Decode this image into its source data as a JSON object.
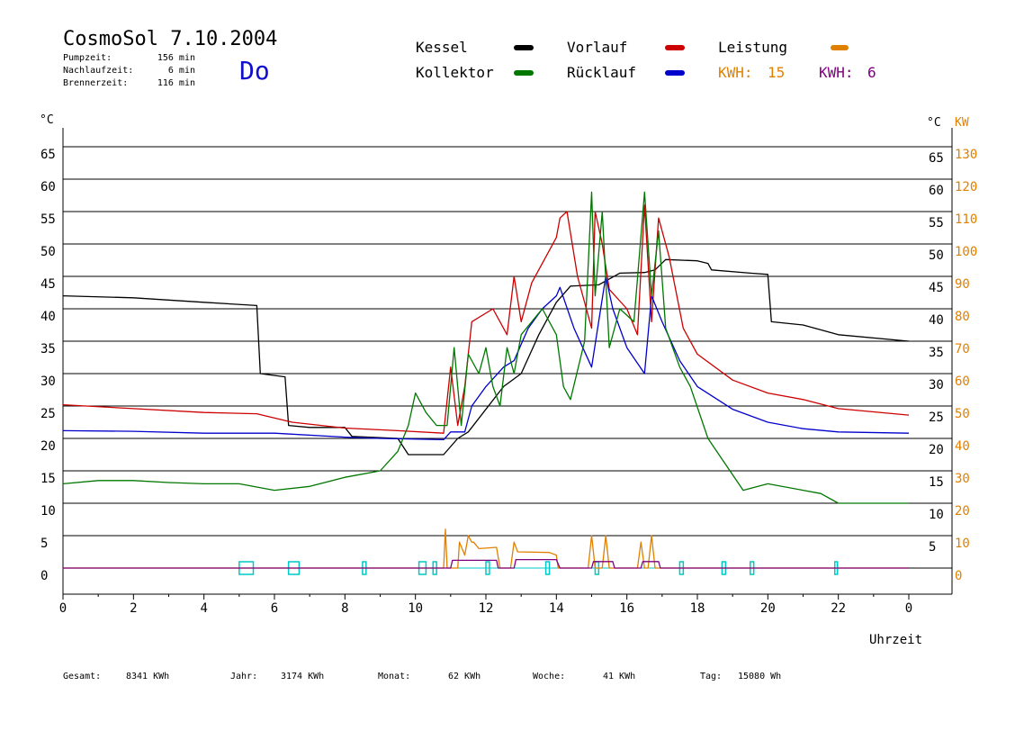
{
  "header": {
    "title": "CosmoSol 7.10.2004",
    "day": "Do",
    "stats": [
      {
        "label": "Pumpzeit:",
        "value": "156 min"
      },
      {
        "label": "Nachlaufzeit:",
        "value": "6 min"
      },
      {
        "label": "Brennerzeit:",
        "value": "116 min"
      }
    ],
    "kwh_labels": [
      {
        "label": "KWH:",
        "value": "15",
        "color": "#e08000"
      },
      {
        "label": "KWH:",
        "value": "6",
        "color": "#800080"
      }
    ]
  },
  "footer": {
    "totals": [
      {
        "label": "Gesamt:",
        "value": "8341 KWh"
      },
      {
        "label": "Jahr:",
        "value": "3174 KWh"
      },
      {
        "label": "Monat:",
        "value": "62 KWh"
      },
      {
        "label": "Woche:",
        "value": "41 KWh"
      },
      {
        "label": "Tag:",
        "value": "15080 Wh"
      }
    ]
  },
  "chart_data": {
    "type": "line",
    "xlabel": "Uhrzeit",
    "ylabel_left": "°C",
    "ylabel_right_temp": "°C",
    "ylabel_right_power": "KW",
    "x_range": [
      0,
      24
    ],
    "x_ticks": [
      "0",
      "2",
      "4",
      "6",
      "8",
      "10",
      "12",
      "14",
      "16",
      "18",
      "20",
      "22",
      "0"
    ],
    "y_left_range": [
      -4,
      66
    ],
    "y_left_ticks": [
      "0",
      "5",
      "10",
      "15",
      "20",
      "25",
      "30",
      "35",
      "40",
      "45",
      "50",
      "55",
      "60",
      "65"
    ],
    "y_right_temp_ticks": [
      "5",
      "10",
      "15",
      "20",
      "25",
      "30",
      "35",
      "40",
      "45",
      "50",
      "55",
      "60",
      "65"
    ],
    "y_right_power_ticks": [
      "0",
      "10",
      "20",
      "30",
      "40",
      "50",
      "60",
      "70",
      "80",
      "90",
      "100",
      "110",
      "120",
      "130"
    ],
    "grid": true,
    "legend": "top",
    "series": [
      {
        "name": "Kessel",
        "color": "#000000",
        "points": [
          [
            0,
            42
          ],
          [
            2,
            41.7
          ],
          [
            4,
            41
          ],
          [
            5.5,
            40.5
          ],
          [
            5.6,
            30
          ],
          [
            6.3,
            29.5
          ],
          [
            6.4,
            22
          ],
          [
            7,
            21.7
          ],
          [
            8,
            21.7
          ],
          [
            8.2,
            20.3
          ],
          [
            9.5,
            20
          ],
          [
            9.8,
            17.5
          ],
          [
            10.8,
            17.5
          ],
          [
            11.2,
            20
          ],
          [
            11.5,
            21
          ],
          [
            12.5,
            28
          ],
          [
            13,
            30
          ],
          [
            13.5,
            36
          ],
          [
            14,
            41
          ],
          [
            14.4,
            43.5
          ],
          [
            15.2,
            43.7
          ],
          [
            15.8,
            45.5
          ],
          [
            16.5,
            45.6
          ],
          [
            16.8,
            46
          ],
          [
            17.1,
            47.6
          ],
          [
            18,
            47.4
          ],
          [
            18.3,
            47
          ],
          [
            18.4,
            46
          ],
          [
            19.5,
            45.5
          ],
          [
            20,
            45.3
          ],
          [
            20.1,
            38
          ],
          [
            21,
            37.5
          ],
          [
            22,
            36
          ],
          [
            24,
            35
          ]
        ]
      },
      {
        "name": "Vorlauf",
        "color": "#cc0000",
        "points": [
          [
            0,
            25.2
          ],
          [
            2,
            24.6
          ],
          [
            4,
            24
          ],
          [
            5.5,
            23.8
          ],
          [
            6.5,
            22.5
          ],
          [
            8,
            21.6
          ],
          [
            9.5,
            21.2
          ],
          [
            10.8,
            20.8
          ],
          [
            11,
            31
          ],
          [
            11.2,
            22
          ],
          [
            11.4,
            28
          ],
          [
            11.6,
            38
          ],
          [
            12.2,
            40
          ],
          [
            12.6,
            36
          ],
          [
            12.8,
            45
          ],
          [
            13,
            38
          ],
          [
            13.3,
            44
          ],
          [
            14,
            51
          ],
          [
            14.1,
            54
          ],
          [
            14.3,
            55
          ],
          [
            14.6,
            45
          ],
          [
            15,
            37
          ],
          [
            15.1,
            55
          ],
          [
            15.3,
            50
          ],
          [
            15.5,
            43
          ],
          [
            16,
            40
          ],
          [
            16.3,
            36
          ],
          [
            16.5,
            56
          ],
          [
            16.7,
            38
          ],
          [
            16.9,
            54
          ],
          [
            17.2,
            48
          ],
          [
            17.6,
            37
          ],
          [
            18,
            33
          ],
          [
            19,
            29
          ],
          [
            20,
            27
          ],
          [
            21,
            26
          ],
          [
            22,
            24.6
          ],
          [
            24,
            23.6
          ]
        ]
      },
      {
        "name": "Rücklauf",
        "color": "#0000cc",
        "points": [
          [
            0,
            21.2
          ],
          [
            2,
            21.1
          ],
          [
            4,
            20.8
          ],
          [
            6,
            20.8
          ],
          [
            8,
            20.2
          ],
          [
            9,
            20
          ],
          [
            10.8,
            19.8
          ],
          [
            11,
            21
          ],
          [
            11.4,
            21
          ],
          [
            11.6,
            25
          ],
          [
            12,
            28
          ],
          [
            12.5,
            31
          ],
          [
            12.8,
            32
          ],
          [
            13.2,
            37
          ],
          [
            13.6,
            40
          ],
          [
            14,
            42
          ],
          [
            14.1,
            43.3
          ],
          [
            14.5,
            37
          ],
          [
            15,
            31
          ],
          [
            15.2,
            38
          ],
          [
            15.4,
            45
          ],
          [
            15.6,
            40
          ],
          [
            16,
            34
          ],
          [
            16.5,
            30
          ],
          [
            16.7,
            42
          ],
          [
            17,
            38
          ],
          [
            17.5,
            32
          ],
          [
            18,
            28
          ],
          [
            19,
            24.5
          ],
          [
            20,
            22.5
          ],
          [
            21,
            21.5
          ],
          [
            22,
            21
          ],
          [
            24,
            20.8
          ]
        ]
      },
      {
        "name": "Kollektor",
        "color": "#007700",
        "points": [
          [
            0,
            13
          ],
          [
            1,
            13.5
          ],
          [
            2,
            13.5
          ],
          [
            3,
            13.2
          ],
          [
            4,
            13
          ],
          [
            5,
            13
          ],
          [
            6,
            12
          ],
          [
            7,
            12.6
          ],
          [
            8,
            14
          ],
          [
            9,
            15
          ],
          [
            9.5,
            18
          ],
          [
            9.8,
            22
          ],
          [
            10,
            27
          ],
          [
            10.3,
            24
          ],
          [
            10.6,
            22
          ],
          [
            10.9,
            22
          ],
          [
            11.1,
            34
          ],
          [
            11.3,
            22
          ],
          [
            11.5,
            33
          ],
          [
            11.8,
            30
          ],
          [
            12,
            34
          ],
          [
            12.2,
            28
          ],
          [
            12.4,
            25
          ],
          [
            12.6,
            34
          ],
          [
            12.8,
            30
          ],
          [
            13,
            36
          ],
          [
            13.3,
            38
          ],
          [
            13.6,
            40
          ],
          [
            14,
            36
          ],
          [
            14.2,
            28
          ],
          [
            14.4,
            26
          ],
          [
            14.8,
            35
          ],
          [
            15,
            58
          ],
          [
            15.1,
            42
          ],
          [
            15.3,
            55
          ],
          [
            15.5,
            34
          ],
          [
            15.8,
            40
          ],
          [
            16.2,
            38
          ],
          [
            16.5,
            58
          ],
          [
            16.7,
            42
          ],
          [
            16.9,
            52
          ],
          [
            17.1,
            37
          ],
          [
            17.5,
            31
          ],
          [
            17.8,
            28
          ],
          [
            18.3,
            20
          ],
          [
            18.8,
            16
          ],
          [
            19.3,
            12
          ],
          [
            20,
            13
          ],
          [
            21,
            12
          ],
          [
            21.5,
            11.5
          ],
          [
            22,
            10
          ],
          [
            23,
            10
          ],
          [
            24,
            10
          ]
        ]
      },
      {
        "name": "Leistung",
        "color": "#e08000",
        "points": [
          [
            0,
            0
          ],
          [
            10.8,
            0
          ],
          [
            10.85,
            6
          ],
          [
            10.9,
            0
          ],
          [
            11.2,
            0
          ],
          [
            11.25,
            4
          ],
          [
            11.4,
            2
          ],
          [
            11.5,
            5
          ],
          [
            11.6,
            4
          ],
          [
            11.65,
            4
          ],
          [
            11.8,
            3
          ],
          [
            12.3,
            3.2
          ],
          [
            12.4,
            0
          ],
          [
            12.7,
            0
          ],
          [
            12.8,
            4
          ],
          [
            12.9,
            2.5
          ],
          [
            13.8,
            2.4
          ],
          [
            14,
            2
          ],
          [
            14.05,
            0
          ],
          [
            14.9,
            0
          ],
          [
            15,
            5
          ],
          [
            15.1,
            0
          ],
          [
            15.3,
            0
          ],
          [
            15.4,
            5
          ],
          [
            15.5,
            0
          ],
          [
            16.3,
            0
          ],
          [
            16.4,
            4
          ],
          [
            16.5,
            0
          ],
          [
            16.6,
            0
          ],
          [
            16.7,
            5
          ],
          [
            16.8,
            0
          ],
          [
            24,
            0
          ]
        ]
      },
      {
        "name": "KWH2",
        "color": "#800080",
        "points": [
          [
            0,
            0
          ],
          [
            11,
            0
          ],
          [
            11.05,
            1.2
          ],
          [
            12.3,
            1.2
          ],
          [
            12.35,
            0
          ],
          [
            12.8,
            0
          ],
          [
            12.85,
            1.3
          ],
          [
            14,
            1.3
          ],
          [
            14.1,
            0
          ],
          [
            15,
            0
          ],
          [
            15.05,
            1
          ],
          [
            15.6,
            1
          ],
          [
            15.65,
            0
          ],
          [
            16.4,
            0
          ],
          [
            16.45,
            1
          ],
          [
            16.9,
            1
          ],
          [
            16.95,
            0
          ],
          [
            24,
            0
          ]
        ]
      }
    ],
    "pump_markers": [
      [
        5,
        0.4
      ],
      [
        6.4,
        0.3
      ],
      [
        8.5,
        0.1
      ],
      [
        10.1,
        0.2
      ],
      [
        10.5,
        0.1
      ],
      [
        12,
        0.1
      ],
      [
        13.7,
        0.1
      ],
      [
        15.1,
        0.1
      ],
      [
        17.5,
        0.1
      ],
      [
        18.7,
        0.1
      ],
      [
        19.5,
        0.1
      ],
      [
        21.9,
        0.05
      ]
    ]
  }
}
